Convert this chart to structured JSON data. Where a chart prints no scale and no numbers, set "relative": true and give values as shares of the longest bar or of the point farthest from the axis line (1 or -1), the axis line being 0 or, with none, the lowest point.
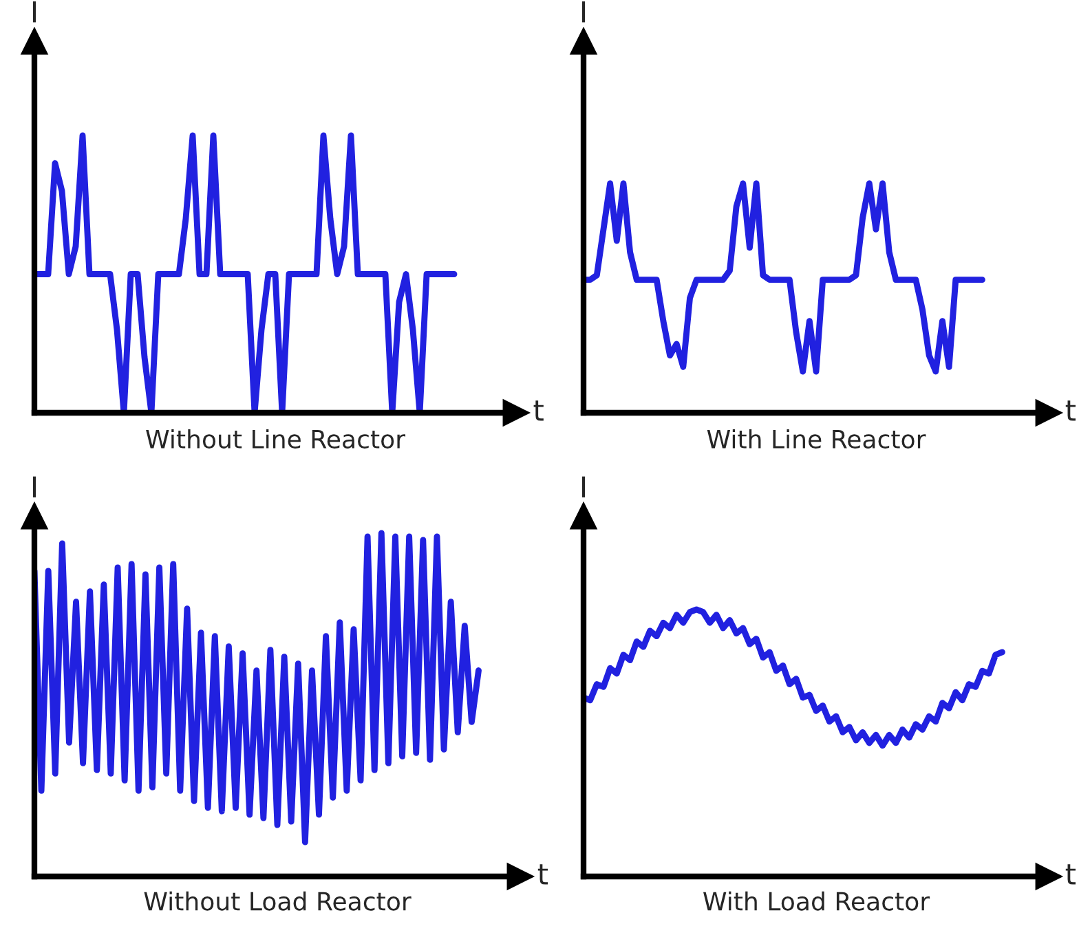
{
  "chart_data": [
    {
      "type": "line",
      "title": "Without Line Reactor",
      "xlabel": "t",
      "ylabel": "I",
      "relative": true,
      "categories": [
        null,
        null,
        null,
        null,
        null,
        null,
        null,
        null,
        null,
        null,
        null,
        null,
        null,
        null,
        null,
        null,
        null,
        null,
        null,
        null,
        null,
        null,
        null,
        null,
        null,
        null,
        null,
        null,
        null,
        null,
        null,
        null,
        null,
        null,
        null,
        null,
        null,
        null,
        null,
        null,
        null,
        null,
        null,
        null,
        null,
        null,
        null,
        null,
        null,
        null,
        null,
        null,
        null,
        null,
        null,
        null,
        null,
        null,
        null,
        null,
        null,
        null,
        null,
        null,
        null,
        null,
        null,
        null,
        null,
        null,
        null
      ],
      "series": [
        {
          "color": "#2121e0",
          "values": [
            0.5,
            0.5,
            0.5,
            0.9,
            0.8,
            0.5,
            0.6,
            1,
            0.5,
            0.5,
            0.5,
            0.5,
            0.3,
            0,
            0.5,
            0.5,
            0.2,
            0,
            0.5,
            0.5,
            0.5,
            0.5,
            0.7,
            1,
            0.5,
            0.5,
            1,
            0.5,
            0.5,
            0.5,
            0.5,
            0.5,
            0,
            0.3,
            0.5,
            0.5,
            0,
            0.5,
            0.5,
            0.5,
            0.5,
            0.5,
            1,
            0.7,
            0.5,
            0.6,
            1,
            0.5,
            0.5,
            0.5,
            0.5,
            0.5,
            0,
            0.4,
            0.5,
            0.3,
            0,
            0.5,
            0.5,
            0.5,
            0.5,
            0.5,
            null,
            null,
            null,
            null,
            null,
            null,
            null,
            null,
            null
          ]
        }
      ]
    },
    {
      "type": "line",
      "title": "With Line Reactor",
      "xlabel": "t",
      "ylabel": "I",
      "relative": true,
      "categories": [
        null,
        null,
        null,
        null,
        null,
        null,
        null,
        null,
        null,
        null,
        null,
        null,
        null,
        null,
        null,
        null,
        null,
        null,
        null,
        null,
        null,
        null,
        null,
        null,
        null,
        null,
        null,
        null,
        null,
        null,
        null,
        null,
        null,
        null,
        null,
        null,
        null,
        null,
        null,
        null,
        null,
        null,
        null,
        null,
        null,
        null,
        null,
        null,
        null,
        null,
        null,
        null,
        null,
        null,
        null,
        null,
        null,
        null,
        null,
        null,
        null,
        null,
        null,
        null,
        null,
        null,
        null,
        null,
        null,
        null,
        null
      ],
      "series": [
        {
          "color": "#2121e0",
          "values": [
            0.58,
            0.58,
            0.6,
            0.8,
            1,
            0.75,
            1,
            0.7,
            0.58,
            0.58,
            0.58,
            0.58,
            0.4,
            0.25,
            0.3,
            0.2,
            0.5,
            0.58,
            0.58,
            0.58,
            0.58,
            0.58,
            0.62,
            0.9,
            1,
            0.72,
            1,
            0.6,
            0.58,
            0.58,
            0.58,
            0.58,
            0.35,
            0.18,
            0.4,
            0.18,
            0.58,
            0.58,
            0.58,
            0.58,
            0.58,
            0.6,
            0.85,
            1,
            0.8,
            1,
            0.7,
            0.58,
            0.58,
            0.58,
            0.58,
            0.45,
            0.25,
            0.18,
            0.4,
            0.2,
            0.58,
            0.58,
            0.58,
            0.58,
            0.58,
            null,
            null,
            null,
            null,
            null,
            null,
            null,
            null,
            null,
            null
          ]
        }
      ]
    },
    {
      "type": "line",
      "title": "Without Load Reactor",
      "xlabel": "t",
      "ylabel": "I",
      "relative": true,
      "categories": [
        null,
        null,
        null,
        null,
        null,
        null,
        null,
        null,
        null,
        null,
        null,
        null,
        null,
        null,
        null,
        null,
        null,
        null,
        null,
        null,
        null,
        null,
        null,
        null,
        null,
        null,
        null,
        null,
        null,
        null,
        null,
        null,
        null,
        null,
        null,
        null,
        null,
        null,
        null,
        null,
        null,
        null,
        null,
        null,
        null,
        null,
        null,
        null,
        null,
        null,
        null,
        null,
        null,
        null,
        null,
        null,
        null,
        null,
        null,
        null,
        null,
        null,
        null,
        null,
        null,
        null,
        null,
        null,
        null,
        null,
        null
      ],
      "series": [
        {
          "color": "#2121e0",
          "values": [
            0.89,
            0.25,
            0.89,
            0.3,
            0.97,
            0.39,
            0.8,
            0.33,
            0.83,
            0.31,
            0.85,
            0.3,
            0.9,
            0.28,
            0.91,
            0.25,
            0.88,
            0.26,
            0.9,
            0.3,
            0.91,
            0.25,
            0.78,
            0.22,
            0.71,
            0.2,
            0.7,
            0.19,
            0.67,
            0.2,
            0.65,
            0.18,
            0.6,
            0.17,
            0.66,
            0.15,
            0.64,
            0.16,
            0.62,
            0.1,
            0.6,
            0.18,
            0.7,
            0.23,
            0.74,
            0.25,
            0.72,
            0.28,
            0.99,
            0.31,
            1,
            0.33,
            0.99,
            0.35,
            0.99,
            0.36,
            0.98,
            0.34,
            0.99,
            0.37,
            0.8,
            0.42,
            0.73,
            0.45,
            0.6,
            null,
            null,
            null,
            null,
            null,
            null
          ]
        }
      ]
    },
    {
      "type": "line",
      "title": "With Load Reactor",
      "xlabel": "t",
      "ylabel": "I",
      "relative": true,
      "categories": [
        null,
        null,
        null,
        null,
        null,
        null,
        null,
        null,
        null,
        null,
        null,
        null,
        null,
        null,
        null,
        null,
        null,
        null,
        null,
        null,
        null,
        null,
        null,
        null,
        null,
        null,
        null,
        null,
        null,
        null,
        null,
        null,
        null,
        null,
        null,
        null,
        null,
        null,
        null,
        null,
        null,
        null,
        null,
        null,
        null,
        null,
        null,
        null,
        null,
        null,
        null,
        null,
        null,
        null,
        null,
        null,
        null,
        null,
        null,
        null,
        null,
        null,
        null,
        null,
        null,
        null,
        null,
        null,
        null,
        null,
        null
      ],
      "series": [
        {
          "color": "#2121e0",
          "values": [
            0.67,
            0.66,
            0.72,
            0.71,
            0.78,
            0.76,
            0.83,
            0.81,
            0.88,
            0.86,
            0.92,
            0.9,
            0.95,
            0.93,
            0.98,
            0.95,
            0.99,
            1,
            0.99,
            0.95,
            0.98,
            0.93,
            0.96,
            0.91,
            0.93,
            0.87,
            0.89,
            0.82,
            0.84,
            0.77,
            0.79,
            0.72,
            0.74,
            0.67,
            0.68,
            0.62,
            0.64,
            0.58,
            0.6,
            0.54,
            0.56,
            0.51,
            0.54,
            0.5,
            0.53,
            0.49,
            0.53,
            0.5,
            0.55,
            0.52,
            0.57,
            0.55,
            0.6,
            0.58,
            0.65,
            0.63,
            0.69,
            0.66,
            0.72,
            0.71,
            0.77,
            0.76,
            0.83,
            0.84,
            null,
            null,
            null,
            null,
            null,
            null,
            null
          ]
        }
      ]
    }
  ]
}
